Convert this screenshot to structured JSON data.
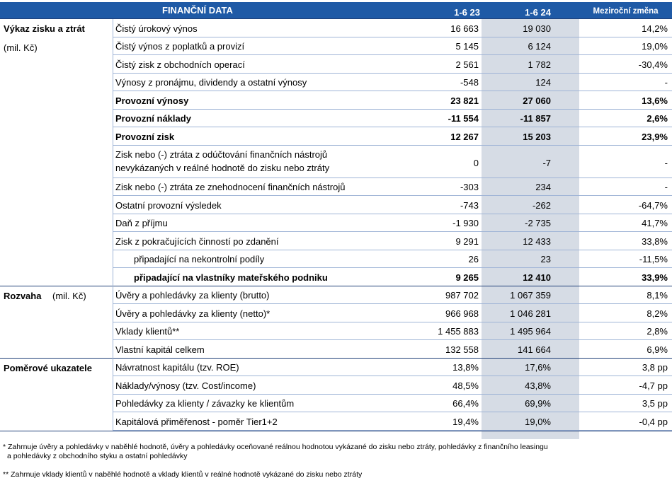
{
  "header": {
    "title": "FINANČNÍ DATA",
    "col1": "1-6 23",
    "col2": "1-6 24",
    "col3": "Meziroční změna"
  },
  "sections": {
    "income": {
      "title": "Výkaz zisku a ztrát",
      "unit": "(mil. Kč)"
    },
    "balance": {
      "title": "Rozvaha",
      "unit": "(mil. Kč)"
    },
    "ratios": {
      "title": "Poměrové ukazatele"
    }
  },
  "income_rows": [
    {
      "label": "Čistý úrokový výnos",
      "v23": "16 663",
      "v24": "19 030",
      "chg": "14,2%"
    },
    {
      "label": "Čistý výnos z poplatků a provizí",
      "v23": "5 145",
      "v24": "6 124",
      "chg": "19,0%"
    },
    {
      "label": "Čistý zisk z obchodních operací",
      "v23": "2 561",
      "v24": "1 782",
      "chg": "-30,4%"
    },
    {
      "label": "Výnosy z pronájmu, dividendy a ostatní výnosy",
      "v23": "-548",
      "v24": "124",
      "chg": "-"
    },
    {
      "label": "Provozní výnosy",
      "v23": "23 821",
      "v24": "27 060",
      "chg": "13,6%"
    },
    {
      "label": "Provozní náklady",
      "v23": "-11 554",
      "v24": "-11 857",
      "chg": "2,6%"
    },
    {
      "label": "Provozní zisk",
      "v23": "12 267",
      "v24": "15 203",
      "chg": "23,9%"
    },
    {
      "label1": "Zisk nebo (-) ztráta z odúčtování finančních nástrojů",
      "label2": "nevykázaných v reálné hodnotě do zisku nebo ztráty",
      "v23": "0",
      "v24": "-7",
      "chg": "-"
    },
    {
      "label": "Zisk nebo (-) ztráta ze znehodnocení finančních nástrojů",
      "v23": "-303",
      "v24": "234",
      "chg": "-"
    },
    {
      "label": "Ostatní provozní výsledek",
      "v23": "-743",
      "v24": "-262",
      "chg": "-64,7%"
    },
    {
      "label": "Daň z příjmu",
      "v23": "-1 930",
      "v24": "-2 735",
      "chg": "41,7%"
    },
    {
      "label": "Zisk z pokračujících činností po zdanění",
      "v23": "9 291",
      "v24": "12 433",
      "chg": "33,8%"
    },
    {
      "label": "připadající na nekontrolní podíly",
      "v23": "26",
      "v24": "23",
      "chg": "-11,5%"
    },
    {
      "label": "připadající na vlastníky mateřského podniku",
      "v23": "9 265",
      "v24": "12 410",
      "chg": "33,9%"
    }
  ],
  "balance_rows": [
    {
      "label": "Úvěry a pohledávky za klienty (brutto)",
      "v23": "987 702",
      "v24": "1 067 359",
      "chg": "8,1%"
    },
    {
      "label": "Úvěry a pohledávky za klienty (netto)*",
      "v23": "966 968",
      "v24": "1 046 281",
      "chg": "8,2%"
    },
    {
      "label": "Vklady klientů**",
      "v23": "1 455 883",
      "v24": "1 495 964",
      "chg": "2,8%"
    },
    {
      "label": "Vlastní kapitál celkem",
      "v23": "132 558",
      "v24": "141 664",
      "chg": "6,9%"
    }
  ],
  "ratio_rows": [
    {
      "label": "Návratnost kapitálu (tzv. ROE)",
      "v23": "13,8%",
      "v24": "17,6%",
      "chg": "3,8 pp"
    },
    {
      "label": "Náklady/výnosy (tzv. Cost/income)",
      "v23": "48,5%",
      "v24": "43,8%",
      "chg": "-4,7 pp"
    },
    {
      "label": "Pohledávky za klienty / závazky ke klientům",
      "v23": "66,4%",
      "v24": "69,9%",
      "chg": "3,5 pp"
    },
    {
      "label": "Kapitálová přiměřenost - poměr Tier1+2",
      "v23": "19,4%",
      "v24": "19,0%",
      "chg": "-0,4 pp"
    }
  ],
  "footnotes": {
    "f1_line1": "* Zahrnuje úvěry a pohledávky v naběhlé hodnotě, úvěry a pohledávky oceňované reálnou hodnotou vykázané do zisku nebo ztráty, pohledávky z finančního leasingu",
    "f1_line2": "a pohledávky z obchodního styku a ostatní pohledávky",
    "f2": "** Zahrnuje vklady klientů v naběhlé hodnotě a vklady klientů v reálné hodnotě vykázané do zisku nebo ztráty"
  },
  "colors": {
    "header_bg": "#1f5aa6",
    "highlight_col": "#d6dce5",
    "row_line": "#9fb4d6"
  }
}
